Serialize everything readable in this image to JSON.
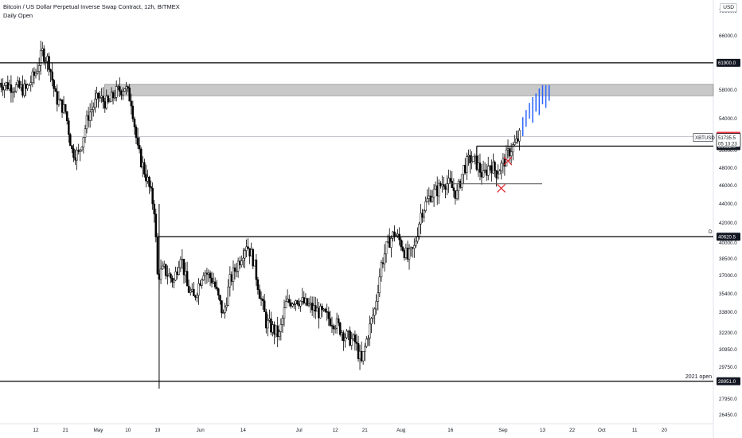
{
  "header": {
    "title": "Bitcoin / US Dollar Perpetual Inverse Swap Contract, 12h, BITMEX",
    "subtitle": "Daily Open"
  },
  "currency_button": "USD",
  "colors": {
    "background": "#ffffff",
    "candles": "#000000",
    "projection": "#2962ff",
    "level_line": "#000000",
    "resistance_zone": "#c8c8c8",
    "price_red": "#f23645",
    "marker_red": "#e0202a",
    "axis_text": "#131722",
    "last_price_line": "#b2b5be"
  },
  "chart_data": {
    "type": "candlestick",
    "symbol": "XBTUSD",
    "interval": "12h",
    "yaxis": {
      "ticks": [
        26450,
        27950,
        29750,
        30950,
        32200,
        33800,
        35400,
        37000,
        38500,
        40000,
        42000,
        44000,
        46000,
        48000,
        50000,
        54000,
        58000,
        62000,
        66000,
        70000
      ],
      "tick_labels": [
        "26450.0",
        "27950.0",
        "29750.0",
        "30950.0",
        "32200.0",
        "33800.0",
        "35400.0",
        "37000.0",
        "38500.0",
        "40000.0",
        "42000.0",
        "44000.0",
        "46000.0",
        "48000.0",
        "50000.0",
        "54000.0",
        "58000.0",
        "62000.0",
        "66000.0",
        "70000.0"
      ],
      "scale": "log"
    },
    "xaxis": {
      "labels": [
        "12",
        "21",
        "May",
        "10",
        "19",
        "Jun",
        "14",
        "Jul",
        "12",
        "21",
        "Aug",
        "16",
        "Sep",
        "13",
        "22",
        "Oct",
        "11",
        "20"
      ],
      "label_dates": [
        "2021-04-12",
        "2021-04-21",
        "2021-05-01",
        "2021-05-10",
        "2021-05-19",
        "2021-06-01",
        "2021-06-14",
        "2021-07-01",
        "2021-07-12",
        "2021-07-21",
        "2021-08-01",
        "2021-08-16",
        "2021-09-01",
        "2021-09-13",
        "2021-09-22",
        "2021-10-01",
        "2021-10-11",
        "2021-10-20"
      ]
    },
    "price_path": [
      [
        "2021-04-01",
        59000
      ],
      [
        "2021-04-05",
        58500
      ],
      [
        "2021-04-09",
        58000
      ],
      [
        "2021-04-12",
        60500
      ],
      [
        "2021-04-14",
        63500
      ],
      [
        "2021-04-16",
        62000
      ],
      [
        "2021-04-18",
        57000
      ],
      [
        "2021-04-21",
        55000
      ],
      [
        "2021-04-23",
        50000
      ],
      [
        "2021-04-25",
        49500
      ],
      [
        "2021-04-28",
        54500
      ],
      [
        "2021-05-01",
        57000
      ],
      [
        "2021-05-04",
        56000
      ],
      [
        "2021-05-06",
        57500
      ],
      [
        "2021-05-09",
        58500
      ],
      [
        "2021-05-11",
        56500
      ],
      [
        "2021-05-13",
        50000
      ],
      [
        "2021-05-16",
        46500
      ],
      [
        "2021-05-18",
        43500
      ],
      [
        "2021-05-19",
        37000
      ],
      [
        "2021-05-21",
        37500
      ],
      [
        "2021-05-24",
        36500
      ],
      [
        "2021-05-26",
        39000
      ],
      [
        "2021-05-28",
        36000
      ],
      [
        "2021-05-30",
        35000
      ],
      [
        "2021-06-02",
        37500
      ],
      [
        "2021-06-05",
        36500
      ],
      [
        "2021-06-08",
        33500
      ],
      [
        "2021-06-10",
        36500
      ],
      [
        "2021-06-13",
        38500
      ],
      [
        "2021-06-15",
        40000
      ],
      [
        "2021-06-17",
        38500
      ],
      [
        "2021-06-19",
        35500
      ],
      [
        "2021-06-21",
        33000
      ],
      [
        "2021-06-23",
        32500
      ],
      [
        "2021-06-25",
        32000
      ],
      [
        "2021-06-27",
        34500
      ],
      [
        "2021-06-30",
        35000
      ],
      [
        "2021-07-03",
        34500
      ],
      [
        "2021-07-06",
        34000
      ],
      [
        "2021-07-09",
        33500
      ],
      [
        "2021-07-12",
        33000
      ],
      [
        "2021-07-15",
        32000
      ],
      [
        "2021-07-18",
        31500
      ],
      [
        "2021-07-20",
        30000
      ],
      [
        "2021-07-22",
        32200
      ],
      [
        "2021-07-24",
        34000
      ],
      [
        "2021-07-26",
        38000
      ],
      [
        "2021-07-28",
        40000
      ],
      [
        "2021-07-30",
        41000
      ],
      [
        "2021-08-01",
        40000
      ],
      [
        "2021-08-03",
        38500
      ],
      [
        "2021-08-05",
        39500
      ],
      [
        "2021-08-07",
        43000
      ],
      [
        "2021-08-10",
        45000
      ],
      [
        "2021-08-12",
        45500
      ],
      [
        "2021-08-14",
        46500
      ],
      [
        "2021-08-16",
        46000
      ],
      [
        "2021-08-18",
        45000
      ],
      [
        "2021-08-20",
        48000
      ],
      [
        "2021-08-22",
        49000
      ],
      [
        "2021-08-24",
        48500
      ],
      [
        "2021-08-26",
        47000
      ],
      [
        "2021-08-28",
        48500
      ],
      [
        "2021-08-30",
        47500
      ],
      [
        "2021-09-01",
        48500
      ],
      [
        "2021-09-03",
        50000
      ],
      [
        "2021-09-05",
        51000
      ],
      [
        "2021-09-06",
        51800
      ]
    ],
    "levels": [
      {
        "price": 61900.0,
        "label": "61900.0",
        "date_from": "2021-04-01"
      },
      {
        "price": 50552.0,
        "label": "50552.0",
        "date_from": "2021-08-24"
      },
      {
        "price": 40620.5,
        "label": "40620.5",
        "date_from": "2021-05-19",
        "tag": "D"
      },
      {
        "price": 28951.0,
        "label": "28951.0",
        "date_from": "2021-04-01",
        "tag": "2021 open"
      }
    ],
    "support_line": {
      "price": 46200,
      "date_from": "2021-08-16",
      "date_to": "2021-09-02"
    },
    "resistance_zone": {
      "low": 57200,
      "high": 58800,
      "date_from": "2021-05-01"
    },
    "projection": [
      [
        "2021-09-07",
        51800,
        54200
      ],
      [
        "2021-09-08",
        53000,
        55200
      ],
      [
        "2021-09-09",
        54000,
        56200
      ],
      [
        "2021-09-10",
        53500,
        57000
      ],
      [
        "2021-09-11",
        55000,
        57500
      ],
      [
        "2021-09-12",
        54500,
        58200
      ],
      [
        "2021-09-13",
        56000,
        58700
      ],
      [
        "2021-09-14",
        55500,
        58700
      ],
      [
        "2021-09-15",
        56500,
        58700
      ]
    ],
    "markers": [
      {
        "date": "2021-09-01",
        "price": 48800
      },
      {
        "date": "2021-08-30",
        "price": 45700
      }
    ],
    "price_badges": [
      {
        "value": "51848.5",
        "style": "red"
      },
      {
        "value": "51735.5",
        "sub": "05:13:23",
        "style": "dark",
        "name": "XBTUSD"
      }
    ]
  }
}
